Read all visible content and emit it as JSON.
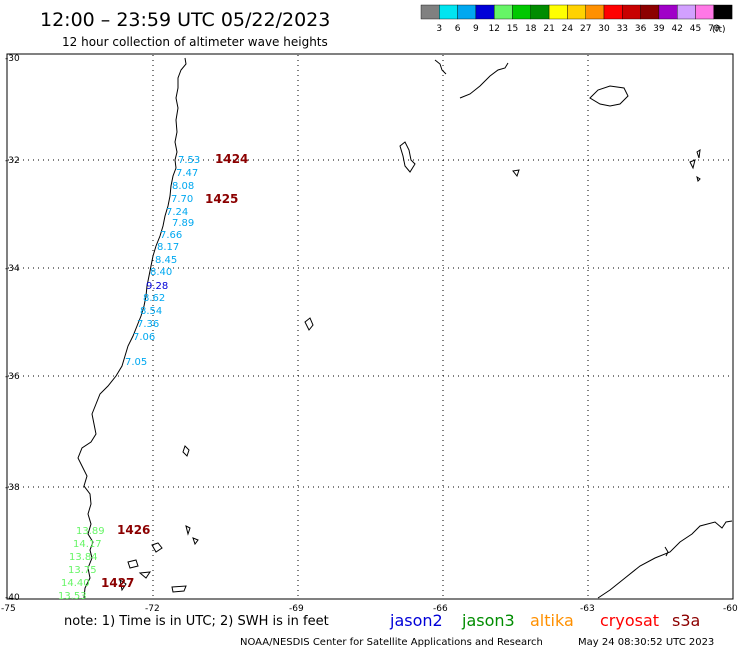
{
  "header": {
    "title": "12:00 – 23:59 UTC 05/22/2023",
    "subtitle": "12 hour collection of altimeter wave heights"
  },
  "legend": {
    "unit": "(ft)",
    "items": [
      {
        "label": "3",
        "color": "#808080"
      },
      {
        "label": "6",
        "color": "#00e5f0"
      },
      {
        "label": "9",
        "color": "#00a8f0"
      },
      {
        "label": "12",
        "color": "#0000d8"
      },
      {
        "label": "15",
        "color": "#66f566"
      },
      {
        "label": "18",
        "color": "#00c800"
      },
      {
        "label": "21",
        "color": "#008c00"
      },
      {
        "label": "24",
        "color": "#ffff00"
      },
      {
        "label": "27",
        "color": "#ffd200"
      },
      {
        "label": "30",
        "color": "#ff9000"
      },
      {
        "label": "33",
        "color": "#ff0000"
      },
      {
        "label": "36",
        "color": "#c80000"
      },
      {
        "label": "39",
        "color": "#8c0000"
      },
      {
        "label": "42",
        "color": "#a000c8"
      },
      {
        "label": "45",
        "color": "#d2a0ff"
      },
      {
        "label": "70",
        "color": "#ff78e6"
      },
      {
        "label": "",
        "color": "#000000"
      }
    ]
  },
  "axes": {
    "lat_labels": [
      "-30",
      "-32",
      "-34",
      "-36",
      "-38",
      "-40"
    ],
    "lon_labels": [
      "-75",
      "-72",
      "-69",
      "-66",
      "-63",
      "-60"
    ]
  },
  "passes": [
    {
      "time": "1424",
      "color": "#8b0000"
    },
    {
      "time": "1425",
      "color": "#8b0000"
    },
    {
      "time": "1426",
      "color": "#8b0000"
    },
    {
      "time": "1427",
      "color": "#8b0000"
    }
  ],
  "observations": [
    {
      "value": "7.53",
      "color": "#00a8f0"
    },
    {
      "value": "7.47",
      "color": "#00a8f0"
    },
    {
      "value": "8.08",
      "color": "#00a8f0"
    },
    {
      "value": "7.70",
      "color": "#00a8f0"
    },
    {
      "value": "7.24",
      "color": "#00a8f0"
    },
    {
      "value": "7.89",
      "color": "#00a8f0"
    },
    {
      "value": "7.66",
      "color": "#00a8f0"
    },
    {
      "value": "8.17",
      "color": "#00a8f0"
    },
    {
      "value": "8.45",
      "color": "#00a8f0"
    },
    {
      "value": "8.40",
      "color": "#00a8f0"
    },
    {
      "value": "9.28",
      "color": "#0000d8"
    },
    {
      "value": "8.62",
      "color": "#00a8f0"
    },
    {
      "value": "8.54",
      "color": "#00a8f0"
    },
    {
      "value": "7.36",
      "color": "#00a8f0"
    },
    {
      "value": "7.06",
      "color": "#00a8f0"
    },
    {
      "value": "7.05",
      "color": "#00a8f0"
    },
    {
      "value": "13.89",
      "color": "#66f566"
    },
    {
      "value": "14.17",
      "color": "#66f566"
    },
    {
      "value": "13.84",
      "color": "#66f566"
    },
    {
      "value": "13.75",
      "color": "#66f566"
    },
    {
      "value": "14.40",
      "color": "#66f566"
    },
    {
      "value": "13.53",
      "color": "#66f566"
    }
  ],
  "footer": {
    "note": "note:  1) Time is in UTC; 2) SWH is in feet",
    "satellites": [
      {
        "name": "jason2",
        "color": "#0000d8"
      },
      {
        "name": "jason3",
        "color": "#008c00"
      },
      {
        "name": "altika",
        "color": "#ff9000"
      },
      {
        "name": "cryosat",
        "color": "#ff0000"
      },
      {
        "name": "s3a",
        "color": "#8c0000"
      }
    ],
    "credit": "NOAA/NESDIS Center for Satellite Applications and Research",
    "generated": "May 24 08:30:52 UTC 2023"
  }
}
